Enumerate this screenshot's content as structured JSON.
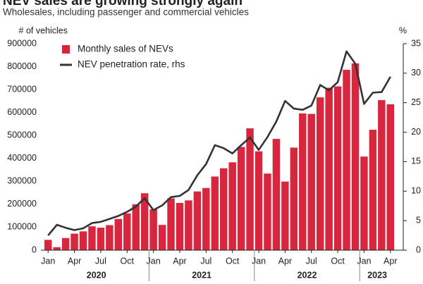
{
  "chart_data": {
    "type": "bar_line",
    "title": "NEV sales are growing strongly again",
    "subtitle": "Wholesales, including passenger and commercial vehicles",
    "y_label": "# of vehicles",
    "y2_label": "%",
    "categories": [
      "Jan",
      null,
      null,
      "Apr",
      null,
      null,
      "Jul",
      null,
      null,
      "Oct",
      null,
      null,
      "Jan",
      null,
      null,
      "Apr",
      null,
      null,
      "Jul",
      null,
      null,
      "Oct",
      null,
      null,
      "Jan",
      null,
      null,
      "Apr",
      null,
      null,
      "Jul",
      null,
      null,
      "Oct",
      null,
      null,
      "Jan",
      null,
      null,
      "Apr"
    ],
    "years": [
      {
        "label": "2020",
        "from": 0,
        "to": 11
      },
      {
        "label": "2021",
        "from": 12,
        "to": 23
      },
      {
        "label": "2022",
        "from": 24,
        "to": 35
      },
      {
        "label": "2023",
        "from": 36,
        "to": 39
      }
    ],
    "series": [
      {
        "name": "Monthly sales of NEVs",
        "color": "#d7263d",
        "kind": "bar",
        "values": [
          45000,
          13000,
          53000,
          72000,
          82000,
          104000,
          98000,
          109000,
          136000,
          160000,
          200000,
          248000,
          179000,
          110000,
          226000,
          206000,
          217000,
          256000,
          271000,
          321000,
          357000,
          383000,
          450000,
          531000,
          431000,
          334000,
          485000,
          299000,
          447000,
          596000,
          594000,
          666000,
          708000,
          714000,
          786000,
          814000,
          408000,
          525000,
          654000,
          636000
        ]
      },
      {
        "name": "NEV penetration rate, rhs",
        "color": "#333333",
        "kind": "line",
        "axis": "y2",
        "values": [
          2.5,
          4.3,
          3.8,
          3.4,
          3.7,
          4.6,
          4.8,
          5.3,
          5.8,
          6.5,
          7.4,
          8.8,
          6.8,
          7.6,
          9.0,
          9.2,
          10.2,
          12.7,
          14.6,
          17.8,
          17.3,
          16.4,
          17.8,
          19.1,
          17.0,
          19.2,
          21.8,
          25.3,
          24.0,
          23.8,
          24.5,
          28.0,
          27.1,
          28.5,
          33.7,
          31.6,
          24.8,
          26.7,
          26.8,
          29.4
        ]
      }
    ],
    "ylim": [
      0,
      900000
    ],
    "yticks": [
      0,
      100000,
      200000,
      300000,
      400000,
      500000,
      600000,
      700000,
      800000,
      900000
    ],
    "y2lim": [
      0,
      35
    ],
    "y2ticks": [
      0,
      5,
      10,
      15,
      20,
      25,
      30,
      35
    ],
    "grid": false
  }
}
